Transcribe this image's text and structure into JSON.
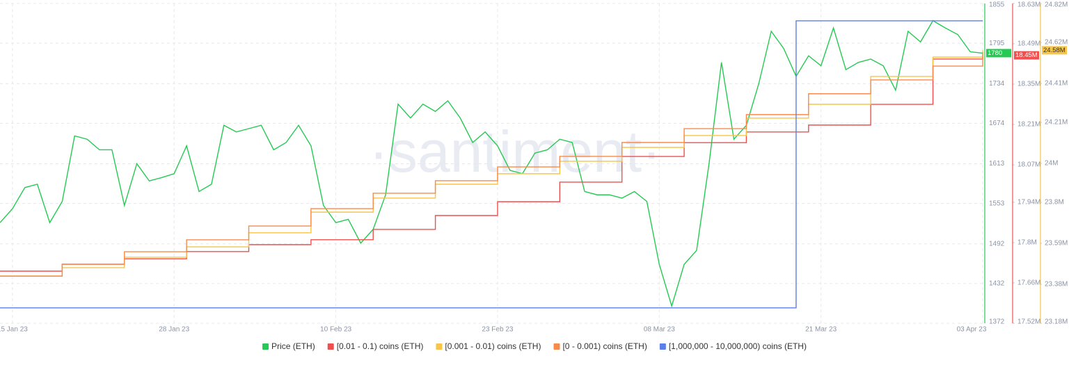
{
  "chart_data": {
    "type": "line",
    "watermark": "·santiment·",
    "xlim": [
      "2023-01-14",
      "2023-04-03"
    ],
    "xticks": [
      {
        "value": "2023-01-15",
        "label": "15 Jan 23"
      },
      {
        "value": "2023-01-28",
        "label": "28 Jan 23"
      },
      {
        "value": "2023-02-10",
        "label": "10 Feb 23"
      },
      {
        "value": "2023-02-23",
        "label": "23 Feb 23"
      },
      {
        "value": "2023-03-08",
        "label": "08 Mar 23"
      },
      {
        "value": "2023-03-21",
        "label": "21 Mar 23"
      },
      {
        "value": "2023-04-03",
        "label": "03 Apr 23"
      }
    ],
    "ylim": [
      1372,
      1855
    ],
    "yticks": [
      1855,
      1795,
      1734,
      1674,
      1613,
      1553,
      1492,
      1432,
      1372
    ],
    "y2lim": [
      17520000,
      18630000
    ],
    "y2ticks": [
      {
        "value": 18630000,
        "label": "18.63M"
      },
      {
        "value": 18490000,
        "label": "18.49M"
      },
      {
        "value": 18350000,
        "label": "18.35M"
      },
      {
        "value": 18210000,
        "label": "18.21M"
      },
      {
        "value": 18070000,
        "label": "18.07M"
      },
      {
        "value": 17940000,
        "label": "17.94M"
      },
      {
        "value": 17800000,
        "label": "17.8M"
      },
      {
        "value": 17660000,
        "label": "17.66M"
      },
      {
        "value": 17520000,
        "label": "17.52M"
      }
    ],
    "y3lim": [
      23180000,
      24820000
    ],
    "y3ticks": [
      {
        "value": 24820000,
        "label": "24.82M"
      },
      {
        "value": 24620000,
        "label": "24.62M"
      },
      {
        "value": 24410000,
        "label": "24.41M"
      },
      {
        "value": 24210000,
        "label": "24.21M"
      },
      {
        "value": 24000000,
        "label": "24M"
      },
      {
        "value": 23800000,
        "label": "23.8M"
      },
      {
        "value": 23590000,
        "label": "23.59M"
      },
      {
        "value": 23380000,
        "label": "23.38M"
      },
      {
        "value": 23180000,
        "label": "23.18M"
      }
    ],
    "grid": true,
    "series": [
      {
        "name": "Price (ETH)",
        "color": "#26c953",
        "axis": "y",
        "step": false,
        "x": [
          "2023-01-14",
          "2023-01-15",
          "2023-01-16",
          "2023-01-17",
          "2023-01-18",
          "2023-01-19",
          "2023-01-20",
          "2023-01-21",
          "2023-01-22",
          "2023-01-23",
          "2023-01-24",
          "2023-01-25",
          "2023-01-26",
          "2023-01-27",
          "2023-01-28",
          "2023-01-29",
          "2023-01-30",
          "2023-01-31",
          "2023-02-01",
          "2023-02-02",
          "2023-02-03",
          "2023-02-04",
          "2023-02-05",
          "2023-02-06",
          "2023-02-07",
          "2023-02-08",
          "2023-02-09",
          "2023-02-10",
          "2023-02-11",
          "2023-02-12",
          "2023-02-13",
          "2023-02-14",
          "2023-02-15",
          "2023-02-16",
          "2023-02-17",
          "2023-02-18",
          "2023-02-19",
          "2023-02-20",
          "2023-02-21",
          "2023-02-22",
          "2023-02-23",
          "2023-02-24",
          "2023-02-25",
          "2023-02-26",
          "2023-02-27",
          "2023-02-28",
          "2023-03-01",
          "2023-03-02",
          "2023-03-03",
          "2023-03-04",
          "2023-03-05",
          "2023-03-06",
          "2023-03-07",
          "2023-03-08",
          "2023-03-09",
          "2023-03-10",
          "2023-03-11",
          "2023-03-12",
          "2023-03-13",
          "2023-03-14",
          "2023-03-15",
          "2023-03-16",
          "2023-03-17",
          "2023-03-18",
          "2023-03-19",
          "2023-03-20",
          "2023-03-21",
          "2023-03-22",
          "2023-03-23",
          "2023-03-24",
          "2023-03-25",
          "2023-03-26",
          "2023-03-27",
          "2023-03-28",
          "2023-03-29",
          "2023-03-30",
          "2023-03-31",
          "2023-04-01",
          "2023-04-02",
          "2023-04-03"
        ],
        "values": [
          1524,
          1545,
          1577,
          1582,
          1524,
          1556,
          1655,
          1650,
          1634,
          1634,
          1550,
          1613,
          1587,
          1592,
          1598,
          1640,
          1571,
          1582,
          1671,
          1661,
          1666,
          1671,
          1634,
          1645,
          1671,
          1640,
          1550,
          1524,
          1529,
          1493,
          1514,
          1566,
          1703,
          1682,
          1703,
          1692,
          1708,
          1682,
          1645,
          1661,
          1640,
          1603,
          1598,
          1629,
          1634,
          1650,
          1645,
          1571,
          1566,
          1566,
          1561,
          1571,
          1556,
          1461,
          1398,
          1461,
          1482,
          1613,
          1766,
          1650,
          1671,
          1734,
          1813,
          1787,
          1745,
          1776,
          1761,
          1818,
          1755,
          1766,
          1771,
          1761,
          1724,
          1813,
          1797,
          1829,
          1818,
          1808,
          1782,
          1780
        ]
      },
      {
        "name": "[0.01 - 0.1) coins (ETH)",
        "color": "#ef4f4f",
        "axis": "y2",
        "step": true,
        "last_label": "18.45M",
        "x": [
          "2023-01-14",
          "2023-01-19",
          "2023-01-24",
          "2023-01-29",
          "2023-02-03",
          "2023-02-08",
          "2023-02-13",
          "2023-02-18",
          "2023-02-23",
          "2023-02-28",
          "2023-03-05",
          "2023-03-10",
          "2023-03-15",
          "2023-03-20",
          "2023-03-25",
          "2023-03-30",
          "2023-04-03"
        ],
        "values": [
          17701000,
          17725000,
          17744000,
          17769000,
          17793000,
          17810000,
          17846000,
          17894000,
          17942000,
          18010000,
          18099000,
          18147000,
          18184000,
          18208000,
          18280000,
          18437000,
          18450000
        ]
      },
      {
        "name": "[0.001 - 0.01) coins (ETH)",
        "color": "#f7c548",
        "axis": "y3",
        "step": true,
        "last_label": "24.58M",
        "x": [
          "2023-01-14",
          "2023-01-19",
          "2023-01-24",
          "2023-01-29",
          "2023-02-03",
          "2023-02-08",
          "2023-02-13",
          "2023-02-18",
          "2023-02-23",
          "2023-02-28",
          "2023-03-05",
          "2023-03-10",
          "2023-03-15",
          "2023-03-20",
          "2023-03-25",
          "2023-03-30",
          "2023-04-03"
        ],
        "values": [
          23422000,
          23465000,
          23519000,
          23572000,
          23644000,
          23750000,
          23822000,
          23893000,
          23947000,
          24011000,
          24082000,
          24143000,
          24232000,
          24303000,
          24446000,
          24545000,
          24580000
        ]
      },
      {
        "name": "[0 - 0.001) coins (ETH)",
        "color": "#f88a4a",
        "axis": "y3",
        "step": true,
        "x": [
          "2023-01-14",
          "2023-01-19",
          "2023-01-24",
          "2023-01-29",
          "2023-02-03",
          "2023-02-08",
          "2023-02-13",
          "2023-02-18",
          "2023-02-23",
          "2023-02-28",
          "2023-03-05",
          "2023-03-10",
          "2023-03-15",
          "2023-03-20",
          "2023-03-25",
          "2023-03-30",
          "2023-04-03"
        ],
        "values": [
          23422000,
          23483000,
          23547000,
          23608000,
          23679000,
          23768000,
          23847000,
          23911000,
          23982000,
          24036000,
          24107000,
          24178000,
          24250000,
          24357000,
          24428000,
          24499000,
          24570000
        ]
      },
      {
        "name": "[1,000,000 - 10,000,000) coins (ETH)",
        "color": "#5b7fe8",
        "axis": "y3",
        "step": true,
        "x": [
          "2023-01-14",
          "2023-03-19",
          "2023-04-03"
        ],
        "values": [
          23259000,
          24731000,
          24731000
        ]
      }
    ]
  }
}
